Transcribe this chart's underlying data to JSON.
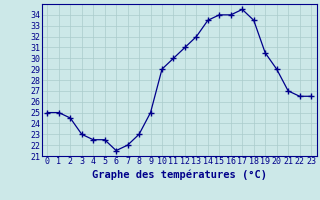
{
  "hours": [
    0,
    1,
    2,
    3,
    4,
    5,
    6,
    7,
    8,
    9,
    10,
    11,
    12,
    13,
    14,
    15,
    16,
    17,
    18,
    19,
    20,
    21,
    22,
    23
  ],
  "temps": [
    25.0,
    25.0,
    24.5,
    23.0,
    22.5,
    22.5,
    21.5,
    22.0,
    23.0,
    25.0,
    29.0,
    30.0,
    31.0,
    32.0,
    33.5,
    34.0,
    34.0,
    34.5,
    33.5,
    30.5,
    29.0,
    27.0,
    26.5,
    26.5
  ],
  "ylim": [
    21,
    35
  ],
  "yticks": [
    21,
    22,
    23,
    24,
    25,
    26,
    27,
    28,
    29,
    30,
    31,
    32,
    33,
    34
  ],
  "line_color": "#00008B",
  "marker": "+",
  "marker_size": 4,
  "bg_color": "#cce8e8",
  "grid_color": "#aacccc",
  "xlabel": "Graphe des températures (°C)",
  "xlabel_color": "#00008B",
  "tick_fontsize": 6,
  "xlabel_fontsize": 7.5
}
